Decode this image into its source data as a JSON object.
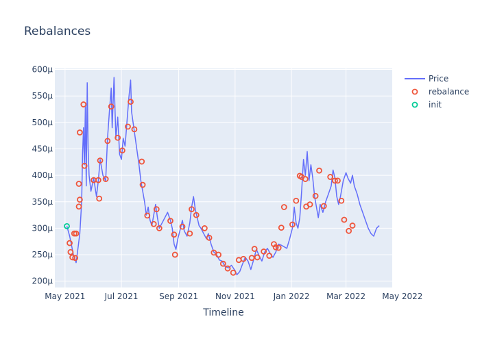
{
  "chart_data": {
    "type": "line",
    "title": "Rebalances",
    "xlabel": "Timeline",
    "ylabel": "",
    "x_range": [
      "2021-04-20",
      "2022-04-20"
    ],
    "ylim": [
      188,
      602
    ],
    "x_ticks": [
      {
        "date": "2021-05-01",
        "label": "May 2021"
      },
      {
        "date": "2021-07-01",
        "label": "Jul 2021"
      },
      {
        "date": "2021-09-01",
        "label": "Sep 2021"
      },
      {
        "date": "2021-11-01",
        "label": "Nov 2021"
      },
      {
        "date": "2022-01-01",
        "label": "Jan 2022"
      },
      {
        "date": "2022-03-01",
        "label": "Mar 2022"
      },
      {
        "date": "2022-05-01",
        "label": "May 2022"
      }
    ],
    "y_ticks": [
      {
        "value": 200,
        "label": "200µ"
      },
      {
        "value": 250,
        "label": "250µ"
      },
      {
        "value": 300,
        "label": "300µ"
      },
      {
        "value": 350,
        "label": "350µ"
      },
      {
        "value": 400,
        "label": "400µ"
      },
      {
        "value": 450,
        "label": "450µ"
      },
      {
        "value": 500,
        "label": "500µ"
      },
      {
        "value": 550,
        "label": "550µ"
      },
      {
        "value": 600,
        "label": "600µ"
      }
    ],
    "grid": true,
    "legend_position": "top-right",
    "series": [
      {
        "name": "Price",
        "mode": "line",
        "color": "#636efa",
        "points": [
          [
            "2021-05-03",
            304
          ],
          [
            "2021-05-06",
            285
          ],
          [
            "2021-05-08",
            268
          ],
          [
            "2021-05-10",
            250
          ],
          [
            "2021-05-13",
            235
          ],
          [
            "2021-05-15",
            262
          ],
          [
            "2021-05-17",
            290
          ],
          [
            "2021-05-19",
            350
          ],
          [
            "2021-05-20",
            440
          ],
          [
            "2021-05-21",
            490
          ],
          [
            "2021-05-22",
            420
          ],
          [
            "2021-05-23",
            530
          ],
          [
            "2021-05-24",
            380
          ],
          [
            "2021-05-25",
            575
          ],
          [
            "2021-05-26",
            450
          ],
          [
            "2021-05-27",
            400
          ],
          [
            "2021-05-29",
            370
          ],
          [
            "2021-06-01",
            395
          ],
          [
            "2021-06-04",
            360
          ],
          [
            "2021-06-06",
            390
          ],
          [
            "2021-06-08",
            430
          ],
          [
            "2021-06-11",
            400
          ],
          [
            "2021-06-14",
            390
          ],
          [
            "2021-06-16",
            470
          ],
          [
            "2021-06-18",
            520
          ],
          [
            "2021-06-20",
            565
          ],
          [
            "2021-06-21",
            490
          ],
          [
            "2021-06-23",
            585
          ],
          [
            "2021-06-25",
            470
          ],
          [
            "2021-06-27",
            510
          ],
          [
            "2021-06-29",
            440
          ],
          [
            "2021-07-01",
            430
          ],
          [
            "2021-07-03",
            470
          ],
          [
            "2021-07-05",
            455
          ],
          [
            "2021-07-07",
            500
          ],
          [
            "2021-07-09",
            545
          ],
          [
            "2021-07-11",
            580
          ],
          [
            "2021-07-12",
            520
          ],
          [
            "2021-07-14",
            495
          ],
          [
            "2021-07-16",
            470
          ],
          [
            "2021-07-18",
            445
          ],
          [
            "2021-07-20",
            420
          ],
          [
            "2021-07-22",
            390
          ],
          [
            "2021-07-24",
            370
          ],
          [
            "2021-07-26",
            350
          ],
          [
            "2021-07-28",
            325
          ],
          [
            "2021-07-30",
            340
          ],
          [
            "2021-08-01",
            315
          ],
          [
            "2021-08-03",
            305
          ],
          [
            "2021-08-05",
            325
          ],
          [
            "2021-08-07",
            345
          ],
          [
            "2021-08-09",
            320
          ],
          [
            "2021-08-11",
            300
          ],
          [
            "2021-08-14",
            310
          ],
          [
            "2021-08-17",
            320
          ],
          [
            "2021-08-20",
            330
          ],
          [
            "2021-08-23",
            315
          ],
          [
            "2021-08-25",
            300
          ],
          [
            "2021-08-27",
            270
          ],
          [
            "2021-08-29",
            260
          ],
          [
            "2021-08-31",
            280
          ],
          [
            "2021-09-03",
            300
          ],
          [
            "2021-09-05",
            315
          ],
          [
            "2021-09-07",
            295
          ],
          [
            "2021-09-10",
            285
          ],
          [
            "2021-09-13",
            310
          ],
          [
            "2021-09-15",
            340
          ],
          [
            "2021-09-17",
            360
          ],
          [
            "2021-09-19",
            335
          ],
          [
            "2021-09-21",
            320
          ],
          [
            "2021-09-23",
            305
          ],
          [
            "2021-09-25",
            300
          ],
          [
            "2021-09-28",
            290
          ],
          [
            "2021-10-01",
            280
          ],
          [
            "2021-10-03",
            290
          ],
          [
            "2021-10-06",
            270
          ],
          [
            "2021-10-09",
            255
          ],
          [
            "2021-10-12",
            250
          ],
          [
            "2021-10-15",
            240
          ],
          [
            "2021-10-18",
            238
          ],
          [
            "2021-10-21",
            228
          ],
          [
            "2021-10-25",
            225
          ],
          [
            "2021-10-28",
            230
          ],
          [
            "2021-11-01",
            220
          ],
          [
            "2021-11-03",
            212
          ],
          [
            "2021-11-06",
            218
          ],
          [
            "2021-11-09",
            232
          ],
          [
            "2021-11-12",
            245
          ],
          [
            "2021-11-15",
            238
          ],
          [
            "2021-11-18",
            222
          ],
          [
            "2021-11-21",
            240
          ],
          [
            "2021-11-24",
            260
          ],
          [
            "2021-11-27",
            248
          ],
          [
            "2021-11-30",
            238
          ],
          [
            "2021-12-03",
            255
          ],
          [
            "2021-12-06",
            262
          ],
          [
            "2021-12-09",
            252
          ],
          [
            "2021-12-12",
            245
          ],
          [
            "2021-12-15",
            255
          ],
          [
            "2021-12-18",
            270
          ],
          [
            "2021-12-21",
            268
          ],
          [
            "2021-12-24",
            265
          ],
          [
            "2021-12-27",
            262
          ],
          [
            "2021-12-30",
            280
          ],
          [
            "2022-01-02",
            300
          ],
          [
            "2022-01-04",
            340
          ],
          [
            "2022-01-06",
            310
          ],
          [
            "2022-01-08",
            300
          ],
          [
            "2022-01-10",
            320
          ],
          [
            "2022-01-12",
            370
          ],
          [
            "2022-01-14",
            430
          ],
          [
            "2022-01-16",
            400
          ],
          [
            "2022-01-18",
            445
          ],
          [
            "2022-01-20",
            390
          ],
          [
            "2022-01-22",
            420
          ],
          [
            "2022-01-24",
            395
          ],
          [
            "2022-01-26",
            360
          ],
          [
            "2022-01-28",
            340
          ],
          [
            "2022-01-30",
            320
          ],
          [
            "2022-02-01",
            345
          ],
          [
            "2022-02-04",
            330
          ],
          [
            "2022-02-07",
            350
          ],
          [
            "2022-02-10",
            365
          ],
          [
            "2022-02-13",
            380
          ],
          [
            "2022-02-15",
            410
          ],
          [
            "2022-02-17",
            395
          ],
          [
            "2022-02-19",
            360
          ],
          [
            "2022-02-21",
            345
          ],
          [
            "2022-02-23",
            360
          ],
          [
            "2022-02-26",
            390
          ],
          [
            "2022-03-01",
            405
          ],
          [
            "2022-03-03",
            395
          ],
          [
            "2022-03-06",
            385
          ],
          [
            "2022-03-08",
            400
          ],
          [
            "2022-03-10",
            380
          ],
          [
            "2022-03-13",
            365
          ],
          [
            "2022-03-16",
            345
          ],
          [
            "2022-03-19",
            330
          ],
          [
            "2022-03-22",
            315
          ],
          [
            "2022-03-25",
            300
          ],
          [
            "2022-03-28",
            290
          ],
          [
            "2022-03-31",
            285
          ],
          [
            "2022-04-03",
            300
          ],
          [
            "2022-04-06",
            305
          ]
        ]
      },
      {
        "name": "rebalance",
        "mode": "markers",
        "color": "#ef553b",
        "points": [
          [
            "2021-05-06",
            272
          ],
          [
            "2021-05-07",
            255
          ],
          [
            "2021-05-09",
            245
          ],
          [
            "2021-05-11",
            290
          ],
          [
            "2021-05-12",
            244
          ],
          [
            "2021-05-13",
            290
          ],
          [
            "2021-05-16",
            341
          ],
          [
            "2021-05-16",
            384
          ],
          [
            "2021-05-17",
            354
          ],
          [
            "2021-05-17",
            481
          ],
          [
            "2021-05-21",
            534
          ],
          [
            "2021-05-22",
            418
          ],
          [
            "2021-06-01",
            391
          ],
          [
            "2021-06-06",
            391
          ],
          [
            "2021-06-07",
            356
          ],
          [
            "2021-06-08",
            428
          ],
          [
            "2021-06-14",
            393
          ],
          [
            "2021-06-16",
            465
          ],
          [
            "2021-06-20",
            530
          ],
          [
            "2021-06-27",
            471
          ],
          [
            "2021-07-02",
            447
          ],
          [
            "2021-07-08",
            492
          ],
          [
            "2021-07-11",
            539
          ],
          [
            "2021-07-15",
            487
          ],
          [
            "2021-07-23",
            426
          ],
          [
            "2021-07-24",
            382
          ],
          [
            "2021-07-29",
            324
          ],
          [
            "2021-08-05",
            308
          ],
          [
            "2021-08-08",
            336
          ],
          [
            "2021-08-11",
            300
          ],
          [
            "2021-08-23",
            314
          ],
          [
            "2021-08-27",
            288
          ],
          [
            "2021-08-28",
            250
          ],
          [
            "2021-09-05",
            303
          ],
          [
            "2021-09-13",
            290
          ],
          [
            "2021-09-15",
            336
          ],
          [
            "2021-09-20",
            325
          ],
          [
            "2021-09-29",
            300
          ],
          [
            "2021-10-04",
            282
          ],
          [
            "2021-10-09",
            254
          ],
          [
            "2021-10-14",
            250
          ],
          [
            "2021-10-19",
            233
          ],
          [
            "2021-10-24",
            224
          ],
          [
            "2021-10-30",
            216
          ],
          [
            "2021-11-05",
            240
          ],
          [
            "2021-11-10",
            242
          ],
          [
            "2021-11-19",
            244
          ],
          [
            "2021-11-22",
            261
          ],
          [
            "2021-11-25",
            245
          ],
          [
            "2021-12-02",
            256
          ],
          [
            "2021-12-08",
            248
          ],
          [
            "2021-12-13",
            270
          ],
          [
            "2021-12-15",
            264
          ],
          [
            "2021-12-18",
            263
          ],
          [
            "2021-12-21",
            301
          ],
          [
            "2021-12-24",
            340
          ],
          [
            "2022-01-02",
            307
          ],
          [
            "2022-01-06",
            352
          ],
          [
            "2022-01-10",
            399
          ],
          [
            "2022-01-12",
            397
          ],
          [
            "2022-01-16",
            393
          ],
          [
            "2022-01-17",
            341
          ],
          [
            "2022-01-21",
            345
          ],
          [
            "2022-01-27",
            361
          ],
          [
            "2022-01-31",
            409
          ],
          [
            "2022-02-05",
            342
          ],
          [
            "2022-02-12",
            397
          ],
          [
            "2022-02-17",
            390
          ],
          [
            "2022-02-20",
            390
          ],
          [
            "2022-02-24",
            352
          ],
          [
            "2022-02-27",
            316
          ],
          [
            "2022-03-04",
            295
          ],
          [
            "2022-03-08",
            305
          ]
        ]
      },
      {
        "name": "init",
        "mode": "markers",
        "color": "#00cc96",
        "points": [
          [
            "2021-05-03",
            304
          ]
        ]
      }
    ]
  }
}
